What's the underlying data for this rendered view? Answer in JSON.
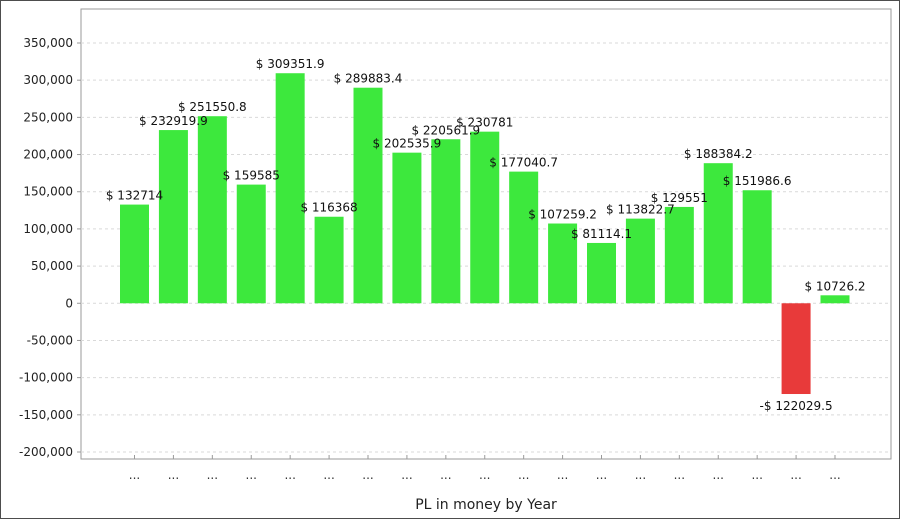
{
  "chart_data": {
    "type": "bar",
    "title": "",
    "xlabel": "PL in money by Year",
    "ylabel": "",
    "ylim": [
      -200000,
      350000
    ],
    "yticks": [
      350000,
      300000,
      250000,
      200000,
      150000,
      100000,
      50000,
      0,
      -50000,
      -100000,
      -150000,
      -200000
    ],
    "ytick_labels": [
      "350,000",
      "300,000",
      "250,000",
      "200,000",
      "150,000",
      "100,000",
      "50,000",
      "0",
      "-50,000",
      "-100,000",
      "-150,000",
      "-200,000"
    ],
    "grid": true,
    "categories": [
      "...",
      "...",
      "...",
      "...",
      "...",
      "...",
      "...",
      "...",
      "...",
      "...",
      "...",
      "...",
      "...",
      "...",
      "...",
      "...",
      "...",
      "...",
      "..."
    ],
    "values": [
      132714,
      232919.9,
      251550.8,
      159585,
      309351.9,
      116368,
      289883.4,
      202535.9,
      220561.9,
      230781,
      177040.7,
      107259.2,
      81114.1,
      113822.7,
      129551,
      188384.2,
      151986.6,
      -122029.5,
      10726.2
    ],
    "data_labels": [
      "$ 132714",
      "$ 232919.9",
      "$ 251550.8",
      "$ 159585",
      "$ 309351.9",
      "$ 116368",
      "$ 289883.4",
      "$ 202535.9",
      "$ 220561.9",
      "$ 230781",
      "$ 177040.7",
      "$ 107259.2",
      "$ 81114.1",
      "$ 113822.7",
      "$ 129551",
      "$ 188384.2",
      "$ 151986.6",
      "-$ 122029.5",
      "$ 10726.2"
    ],
    "colors": {
      "positive": "#3de83d",
      "negative": "#e83a3a",
      "grid": "#d9d9d9",
      "axis": "#9a9a9a"
    }
  }
}
